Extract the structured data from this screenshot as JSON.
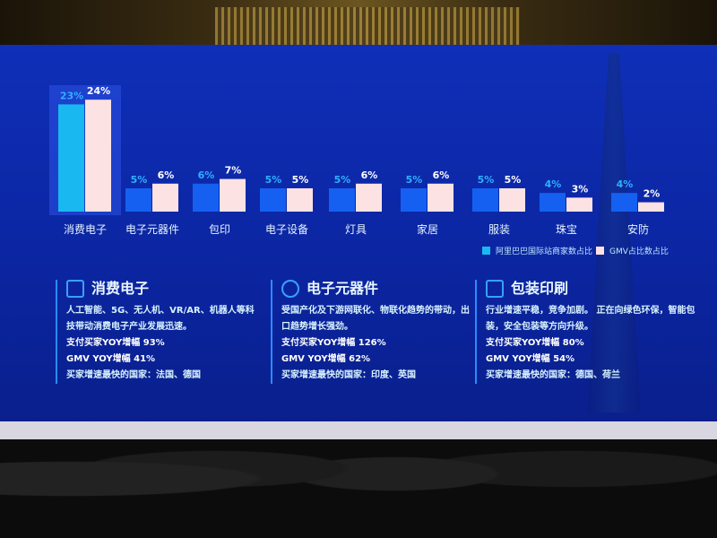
{
  "chart_data": {
    "type": "bar",
    "categories": [
      "消费电子",
      "电子元器件",
      "包印",
      "电子设备",
      "灯具",
      "家居",
      "服装",
      "珠宝",
      "安防"
    ],
    "series": [
      {
        "name": "阿里巴巴国际站商家数占比",
        "values": [
          23,
          5,
          6,
          5,
          5,
          5,
          5,
          4,
          4
        ],
        "color": "#19b8f0"
      },
      {
        "name": "GMV占比数占比",
        "values": [
          24,
          6,
          7,
          5,
          6,
          6,
          5,
          3,
          2
        ],
        "color": "#fde2e4"
      }
    ],
    "unit": "%",
    "highlight_category": "消费电子",
    "legend_position": "bottom-right",
    "grid": false
  },
  "cards": [
    {
      "icon": "box-icon",
      "title": "消费电子",
      "desc": "人工智能、5G、无人机、VR/AR、机器人等科技带动消费电子产业发展迅速。",
      "buyer": "支付买家YOY增幅 93%",
      "gmv": "GMV YOY增幅 41%",
      "countries": "买家增速最快的国家：法国、德国"
    },
    {
      "icon": "badge-check-icon",
      "title": "电子元器件",
      "desc": "受国产化及下游网联化、物联化趋势的带动，出口趋势增长强劲。",
      "buyer": "支付买家YOY增幅 126%",
      "gmv": "GMV YOY增幅 62%",
      "countries": "买家增速最快的国家：印度、英国"
    },
    {
      "icon": "clipboard-icon",
      "title": "包装印刷",
      "desc": "行业增速平稳，竞争加剧。 正在向绿色环保，智能包装，安全包装等方向升级。",
      "buyer": "支付买家YOY增幅 80%",
      "gmv": "GMV YOY增幅 54%",
      "countries": "买家增速最快的国家：德国、荷兰"
    }
  ]
}
